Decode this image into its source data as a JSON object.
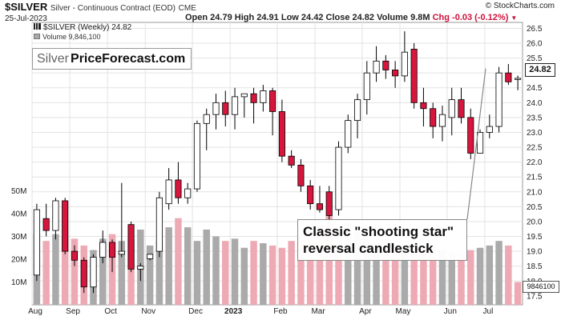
{
  "header": {
    "symbol": "$SILVER",
    "description": "Silver - Continuous Contract (EOD)",
    "exchange": "CME",
    "date": "25-Jul-2023",
    "open": "Open 24.79",
    "high": "High 24.91",
    "low": "Low 24.42",
    "close": "Close 24.82",
    "volume": "Volume 9.8M",
    "change": "Chg -0.03 (-0.12%)",
    "change_marker": "▼",
    "copyright": "© StockCharts.com"
  },
  "legend": {
    "price": "$SILVER (Weekly) 24.82",
    "volume": "Volume 9,846,100"
  },
  "logo": {
    "part1": "Silver",
    "part2": "PriceForecast.com"
  },
  "annotation": {
    "line1": "Classic \"shooting star\"",
    "line2": "reversal candlestick"
  },
  "tags": {
    "price": "24.82",
    "volume": "9846100"
  },
  "colors": {
    "up": "#ffffff",
    "down": "#d6163c",
    "outline": "#000000",
    "vol_up": "#aaaaaa",
    "vol_down": "#eeaab4",
    "grid": "#e3e3e3"
  },
  "chart_data": {
    "type": "candlestick",
    "title": "$SILVER (Weekly)",
    "ylim": [
      17.2,
      26.7
    ],
    "y_ticks": [
      17.5,
      18.0,
      18.5,
      19.0,
      19.5,
      20.0,
      20.5,
      21.0,
      21.5,
      22.0,
      22.5,
      23.0,
      23.5,
      24.0,
      24.5,
      25.0,
      25.5,
      26.0,
      26.5
    ],
    "y_tick_labels": [
      "17.5",
      "18.0",
      "18.5",
      "19.0",
      "19.5",
      "20.0",
      "20.5",
      "21.0",
      "21.5",
      "22.0",
      "22.5",
      "23.0",
      "23.5",
      "24.0",
      "24.5",
      "25.0",
      "25.5",
      "26.0",
      "26.5"
    ],
    "x_labels": [
      "Aug",
      "Sep",
      "Oct",
      "Nov",
      "Dec",
      "2023",
      "Feb",
      "Mar",
      "Apr",
      "May",
      "Jun",
      "Jul"
    ],
    "x_label_weeks": [
      0,
      4,
      8,
      12,
      17,
      21,
      26,
      30,
      35,
      39,
      44,
      48
    ],
    "volume_ticks": [
      "10M",
      "20M",
      "30M",
      "40M",
      "50M"
    ],
    "volume_tick_values": [
      10,
      20,
      30,
      40,
      50
    ],
    "volume_max": 60,
    "candles": [
      {
        "o": 18.2,
        "h": 20.6,
        "l": 18.0,
        "c": 20.4
      },
      {
        "o": 20.1,
        "h": 20.6,
        "l": 19.5,
        "c": 19.7
      },
      {
        "o": 19.7,
        "h": 20.8,
        "l": 19.4,
        "c": 20.7
      },
      {
        "o": 20.7,
        "h": 20.8,
        "l": 18.9,
        "c": 19.0
      },
      {
        "o": 19.0,
        "h": 19.2,
        "l": 18.5,
        "c": 18.7
      },
      {
        "o": 18.7,
        "h": 18.8,
        "l": 17.6,
        "c": 17.8
      },
      {
        "o": 17.8,
        "h": 18.9,
        "l": 17.6,
        "c": 18.8
      },
      {
        "o": 18.8,
        "h": 19.7,
        "l": 18.6,
        "c": 19.3
      },
      {
        "o": 19.3,
        "h": 19.4,
        "l": 18.3,
        "c": 18.8
      },
      {
        "o": 18.9,
        "h": 21.3,
        "l": 18.8,
        "c": 19.0
      },
      {
        "o": 19.9,
        "h": 20.0,
        "l": 18.3,
        "c": 18.4
      },
      {
        "o": 18.4,
        "h": 18.6,
        "l": 18.0,
        "c": 18.5
      },
      {
        "o": 18.75,
        "h": 18.9,
        "l": 18.7,
        "c": 18.9
      },
      {
        "o": 19.0,
        "h": 21.0,
        "l": 18.8,
        "c": 20.8
      },
      {
        "o": 20.6,
        "h": 21.8,
        "l": 20.4,
        "c": 21.4
      },
      {
        "o": 21.4,
        "h": 22.0,
        "l": 20.6,
        "c": 20.8
      },
      {
        "o": 20.8,
        "h": 21.3,
        "l": 20.6,
        "c": 21.1
      },
      {
        "o": 21.1,
        "h": 23.4,
        "l": 21.0,
        "c": 23.3
      },
      {
        "o": 23.3,
        "h": 23.8,
        "l": 22.4,
        "c": 23.6
      },
      {
        "o": 23.6,
        "h": 24.3,
        "l": 23.1,
        "c": 24.0
      },
      {
        "o": 24.0,
        "h": 24.4,
        "l": 23.2,
        "c": 23.6
      },
      {
        "o": 23.6,
        "h": 24.5,
        "l": 23.1,
        "c": 24.2
      },
      {
        "o": 24.2,
        "h": 24.3,
        "l": 23.5,
        "c": 24.3
      },
      {
        "o": 24.3,
        "h": 24.5,
        "l": 23.3,
        "c": 24.0
      },
      {
        "o": 24.0,
        "h": 24.6,
        "l": 23.7,
        "c": 24.4
      },
      {
        "o": 24.4,
        "h": 24.5,
        "l": 22.9,
        "c": 23.7
      },
      {
        "o": 23.7,
        "h": 24.1,
        "l": 22.0,
        "c": 22.2
      },
      {
        "o": 22.2,
        "h": 22.4,
        "l": 21.8,
        "c": 21.9
      },
      {
        "o": 21.9,
        "h": 22.1,
        "l": 21.0,
        "c": 21.2
      },
      {
        "o": 21.2,
        "h": 21.4,
        "l": 20.4,
        "c": 20.6
      },
      {
        "o": 20.6,
        "h": 21.2,
        "l": 20.3,
        "c": 20.4
      },
      {
        "o": 21.0,
        "h": 21.2,
        "l": 19.9,
        "c": 20.2
      },
      {
        "o": 20.4,
        "h": 22.7,
        "l": 20.2,
        "c": 22.5
      },
      {
        "o": 22.5,
        "h": 23.6,
        "l": 22.3,
        "c": 23.4
      },
      {
        "o": 23.4,
        "h": 24.3,
        "l": 22.8,
        "c": 24.1
      },
      {
        "o": 24.1,
        "h": 25.4,
        "l": 23.6,
        "c": 25.0
      },
      {
        "o": 25.0,
        "h": 25.9,
        "l": 24.7,
        "c": 25.4
      },
      {
        "o": 25.4,
        "h": 25.6,
        "l": 24.8,
        "c": 25.1
      },
      {
        "o": 25.1,
        "h": 25.4,
        "l": 24.5,
        "c": 24.9
      },
      {
        "o": 24.9,
        "h": 26.4,
        "l": 24.7,
        "c": 25.7
      },
      {
        "o": 25.8,
        "h": 26.0,
        "l": 23.8,
        "c": 24.0
      },
      {
        "o": 24.0,
        "h": 24.5,
        "l": 23.2,
        "c": 23.8
      },
      {
        "o": 23.8,
        "h": 24.0,
        "l": 22.8,
        "c": 23.2
      },
      {
        "o": 23.2,
        "h": 23.9,
        "l": 22.7,
        "c": 23.6
      },
      {
        "o": 23.5,
        "h": 24.5,
        "l": 22.9,
        "c": 24.1
      },
      {
        "o": 24.1,
        "h": 24.5,
        "l": 23.3,
        "c": 23.5
      },
      {
        "o": 23.5,
        "h": 23.8,
        "l": 22.1,
        "c": 22.3
      },
      {
        "o": 22.3,
        "h": 23.1,
        "l": 22.3,
        "c": 23.0
      },
      {
        "o": 23.0,
        "h": 23.6,
        "l": 22.8,
        "c": 23.2
      },
      {
        "o": 23.2,
        "h": 25.2,
        "l": 23.0,
        "c": 25.0
      },
      {
        "o": 25.0,
        "h": 25.3,
        "l": 24.6,
        "c": 24.7
      },
      {
        "o": 24.79,
        "h": 24.91,
        "l": 24.42,
        "c": 24.82
      }
    ],
    "volume": [
      31,
      28,
      31,
      29,
      29,
      26,
      24,
      29,
      31,
      28,
      29,
      33,
      26,
      28,
      34,
      38,
      34,
      28,
      33,
      30,
      28,
      29,
      25,
      28,
      27,
      26,
      25,
      28,
      31,
      32,
      35,
      39,
      34,
      36,
      32,
      30,
      27,
      29,
      26,
      26,
      28,
      26,
      25,
      24,
      23,
      23,
      24,
      25,
      26,
      28,
      26,
      10
    ],
    "volume_up": [
      true,
      false,
      true,
      false,
      false,
      false,
      true,
      true,
      false,
      true,
      false,
      true,
      true,
      true,
      true,
      false,
      true,
      true,
      true,
      true,
      false,
      true,
      true,
      false,
      true,
      false,
      false,
      false,
      false,
      false,
      false,
      false,
      false,
      true,
      true,
      true,
      true,
      false,
      false,
      true,
      false,
      false,
      false,
      true,
      true,
      false,
      false,
      true,
      true,
      true,
      false,
      false
    ]
  }
}
